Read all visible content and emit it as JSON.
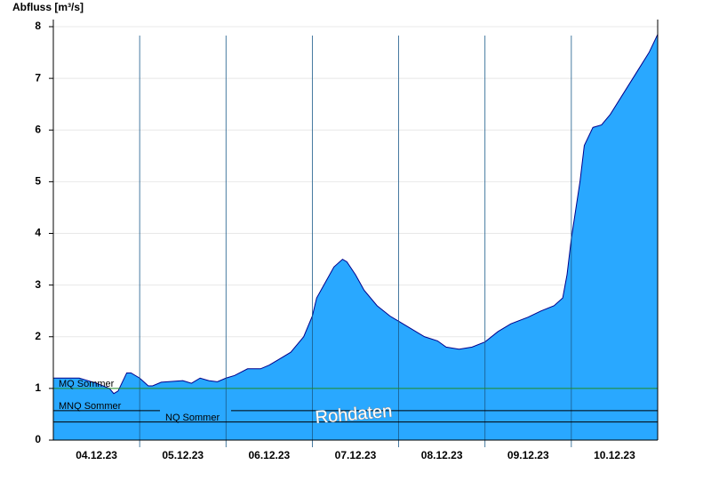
{
  "chart_data": {
    "type": "area",
    "y_label": "Abfluss [m³/s]",
    "annotation": "Rohdaten",
    "xlim": [
      0,
      7
    ],
    "ylim": [
      0,
      8
    ],
    "yticks": [
      0,
      1,
      2,
      3,
      4,
      5,
      6,
      7,
      8
    ],
    "grid": true,
    "xticks": [
      {
        "value": 0.5,
        "label": "04.12.23"
      },
      {
        "value": 1.5,
        "label": "05.12.23"
      },
      {
        "value": 2.5,
        "label": "06.12.23"
      },
      {
        "value": 3.5,
        "label": "07.12.23"
      },
      {
        "value": 4.5,
        "label": "08.12.23"
      },
      {
        "value": 5.5,
        "label": "09.12.23"
      },
      {
        "value": 6.5,
        "label": "10.12.23"
      }
    ],
    "xgrid": [
      1,
      2,
      3,
      4,
      5,
      6
    ],
    "series": [
      {
        "name": "Abfluss",
        "color": "#29a8ff",
        "line_color": "#00008b",
        "x": [
          0,
          0.3,
          0.5,
          0.65,
          0.7,
          0.75,
          0.85,
          0.9,
          1.0,
          1.1,
          1.15,
          1.25,
          1.5,
          1.6,
          1.7,
          1.8,
          1.9,
          2.0,
          2.1,
          2.25,
          2.4,
          2.5,
          2.6,
          2.75,
          2.9,
          3.0,
          3.05,
          3.15,
          3.25,
          3.35,
          3.4,
          3.5,
          3.6,
          3.75,
          3.9,
          4.0,
          4.15,
          4.3,
          4.45,
          4.55,
          4.7,
          4.85,
          5.0,
          5.15,
          5.3,
          5.5,
          5.65,
          5.8,
          5.9,
          5.95,
          6.0,
          6.1,
          6.15,
          6.25,
          6.35,
          6.45,
          6.6,
          6.75,
          6.9,
          7.0
        ],
        "values": [
          1.2,
          1.2,
          1.1,
          1.0,
          0.9,
          0.95,
          1.3,
          1.3,
          1.2,
          1.05,
          1.05,
          1.12,
          1.15,
          1.1,
          1.2,
          1.15,
          1.13,
          1.2,
          1.25,
          1.38,
          1.38,
          1.45,
          1.55,
          1.7,
          2.0,
          2.4,
          2.75,
          3.05,
          3.35,
          3.5,
          3.45,
          3.2,
          2.9,
          2.6,
          2.4,
          2.3,
          2.15,
          2.0,
          1.92,
          1.8,
          1.76,
          1.8,
          1.9,
          2.1,
          2.25,
          2.38,
          2.5,
          2.6,
          2.75,
          3.2,
          3.9,
          5.0,
          5.7,
          6.05,
          6.1,
          6.3,
          6.7,
          7.1,
          7.5,
          7.85
        ]
      }
    ],
    "reference_lines": [
      {
        "name": "MQ Sommer",
        "value": 1.0,
        "color": "#228b22"
      },
      {
        "name": "MNQ Sommer",
        "value": 0.57,
        "color": "#000000"
      },
      {
        "name": "NQ Sommer",
        "value": 0.35,
        "color": "#000000"
      }
    ]
  }
}
